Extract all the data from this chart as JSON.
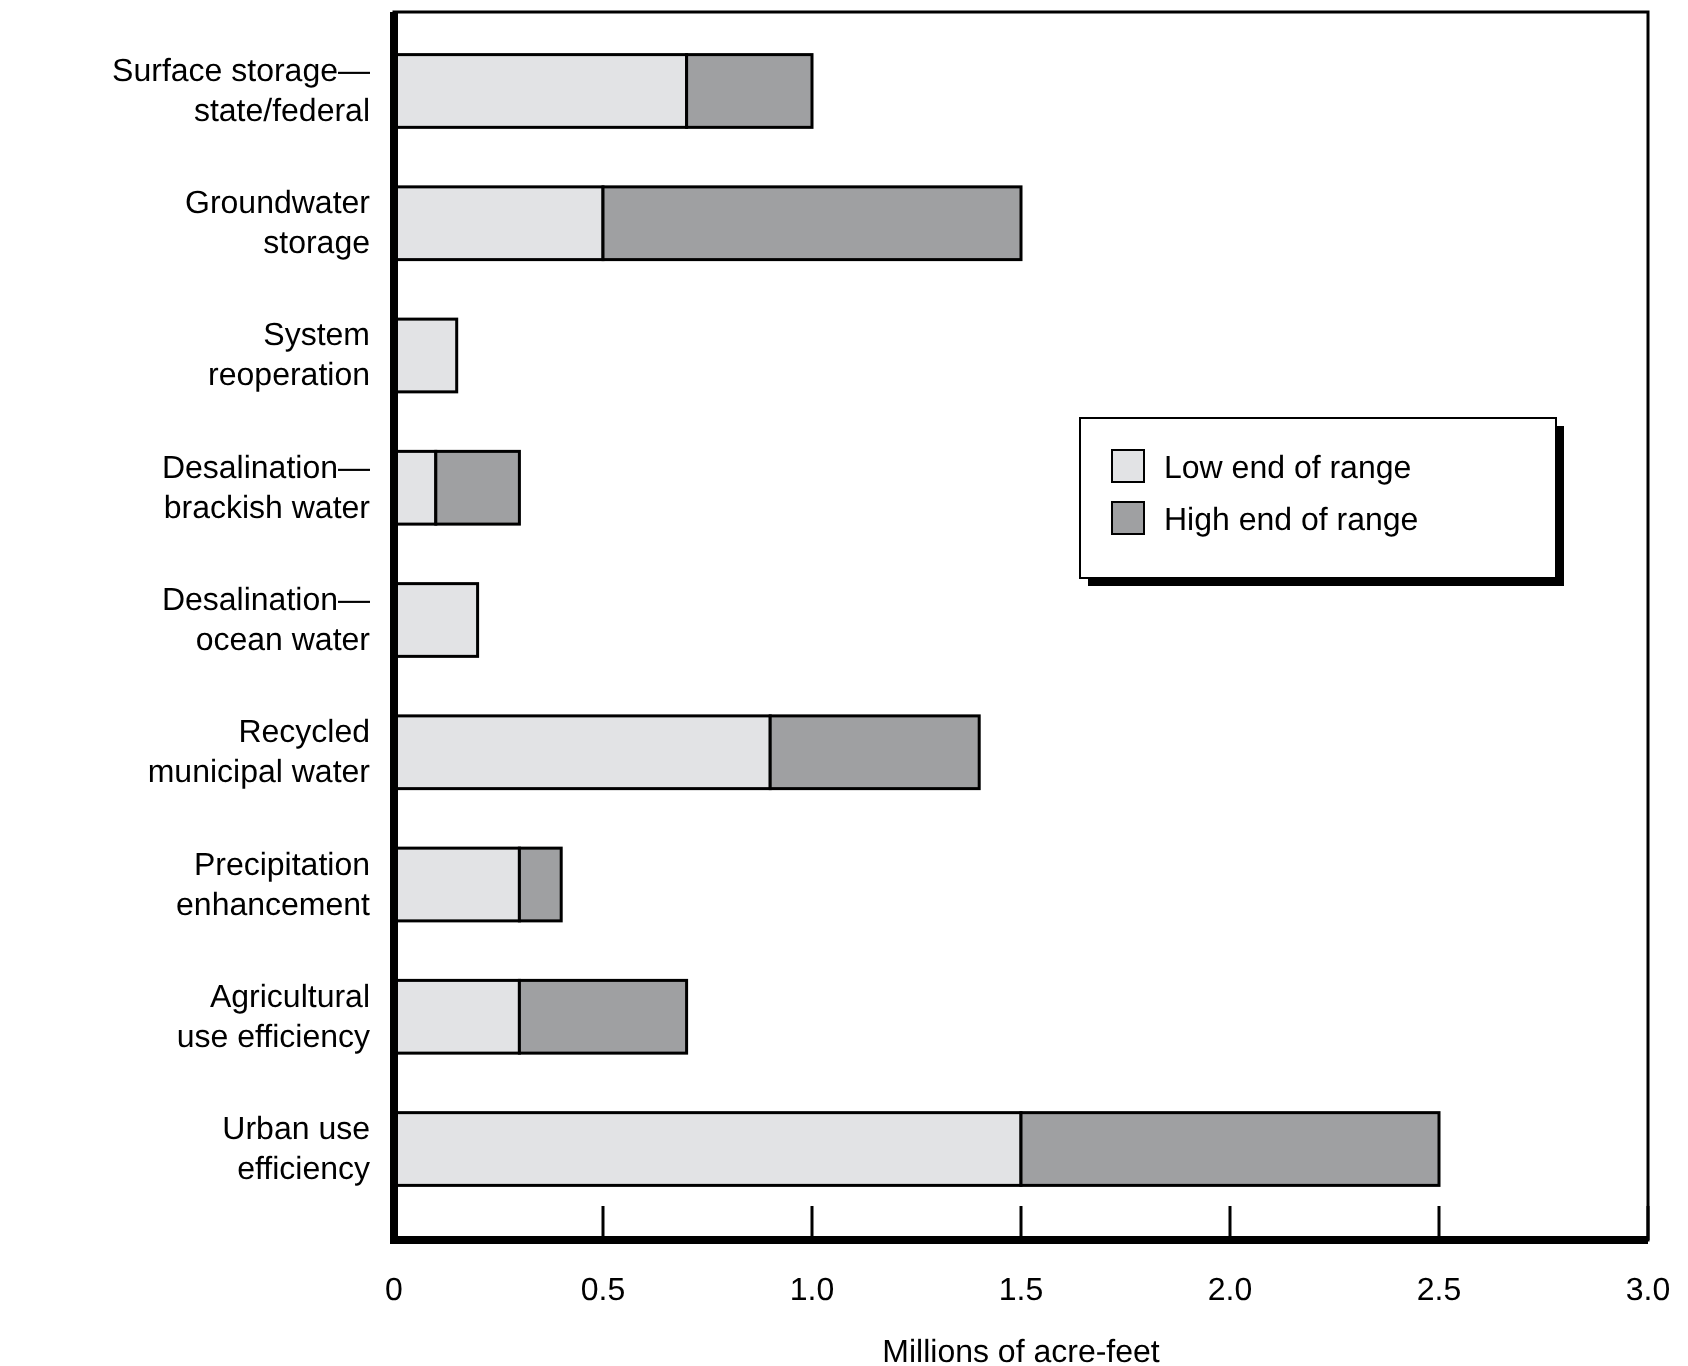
{
  "chart_data": {
    "type": "bar",
    "orientation": "horizontal",
    "stacked": true,
    "categories": [
      "Surface storage—\nstate/federal",
      "Groundwater\nstorage",
      "System\nreoperation",
      "Desalination—\nbrackish water",
      "Desalination—\nocean water",
      "Recycled\nmunicipal water",
      "Precipitation\nenhancement",
      "Agricultural\nuse efficiency",
      "Urban use\nefficiency"
    ],
    "series": [
      {
        "name": "Low end of range",
        "color": "#e2e3e5",
        "values": [
          0.7,
          0.5,
          0.15,
          0.1,
          0.2,
          0.9,
          0.3,
          0.3,
          1.5
        ]
      },
      {
        "name": "High end of range",
        "color": "#9fa0a2",
        "values": [
          0.3,
          1.0,
          null,
          0.2,
          null,
          0.5,
          0.1,
          0.4,
          1.0
        ]
      }
    ],
    "xlabel": "Millions of acre-feet",
    "xlim": [
      0,
      3.0
    ],
    "xticks": [
      0,
      {
        "value": 0.5,
        "label": "0.5"
      },
      {
        "value": 1,
        "label": "1.0"
      },
      {
        "value": 1.5,
        "label": "1.5"
      },
      {
        "value": 2,
        "label": "2.0"
      },
      {
        "value": 2.5,
        "label": "2.5"
      },
      {
        "value": 3,
        "label": "3.0"
      }
    ],
    "legend": "right",
    "grid": false
  }
}
